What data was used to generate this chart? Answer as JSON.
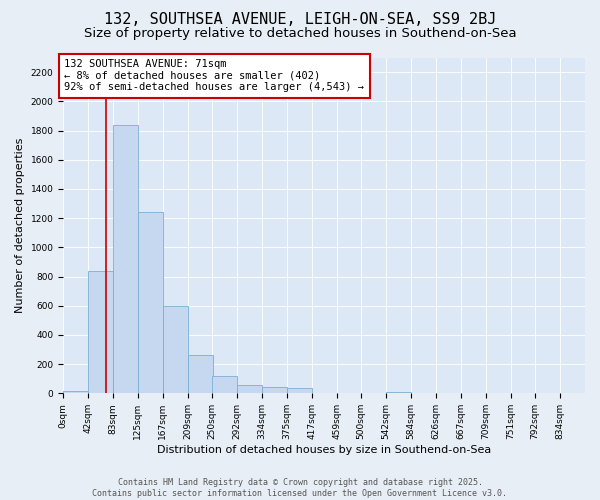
{
  "title": "132, SOUTHSEA AVENUE, LEIGH-ON-SEA, SS9 2BJ",
  "subtitle": "Size of property relative to detached houses in Southend-on-Sea",
  "xlabel": "Distribution of detached houses by size in Southend-on-Sea",
  "ylabel": "Number of detached properties",
  "bar_values": [
    15,
    840,
    1840,
    1240,
    600,
    260,
    120,
    60,
    45,
    35,
    5,
    0,
    0,
    12,
    0,
    0,
    0,
    0,
    0,
    0,
    0
  ],
  "bin_edges": [
    0,
    42,
    83,
    125,
    167,
    209,
    250,
    292,
    334,
    375,
    417,
    459,
    500,
    542,
    584,
    626,
    667,
    709,
    751,
    792,
    834
  ],
  "bin_labels": [
    "0sqm",
    "42sqm",
    "83sqm",
    "125sqm",
    "167sqm",
    "209sqm",
    "250sqm",
    "292sqm",
    "334sqm",
    "375sqm",
    "417sqm",
    "459sqm",
    "500sqm",
    "542sqm",
    "584sqm",
    "626sqm",
    "667sqm",
    "709sqm",
    "751sqm",
    "792sqm",
    "834sqm"
  ],
  "bar_color": "#c5d8ef",
  "bar_edge_color": "#7bafd4",
  "vline_x": 71,
  "vline_color": "#cc0000",
  "ylim": [
    0,
    2300
  ],
  "yticks": [
    0,
    200,
    400,
    600,
    800,
    1000,
    1200,
    1400,
    1600,
    1800,
    2000,
    2200
  ],
  "annotation_text": "132 SOUTHSEA AVENUE: 71sqm\n← 8% of detached houses are smaller (402)\n92% of semi-detached houses are larger (4,543) →",
  "annotation_box_color": "#ffffff",
  "annotation_box_edge": "#cc0000",
  "background_color": "#e8eef5",
  "plot_bg_color": "#dce8f5",
  "footer_text": "Contains HM Land Registry data © Crown copyright and database right 2025.\nContains public sector information licensed under the Open Government Licence v3.0.",
  "title_fontsize": 11,
  "subtitle_fontsize": 9.5,
  "axis_label_fontsize": 8,
  "tick_fontsize": 6.5,
  "annotation_fontsize": 7.5,
  "footer_fontsize": 6
}
